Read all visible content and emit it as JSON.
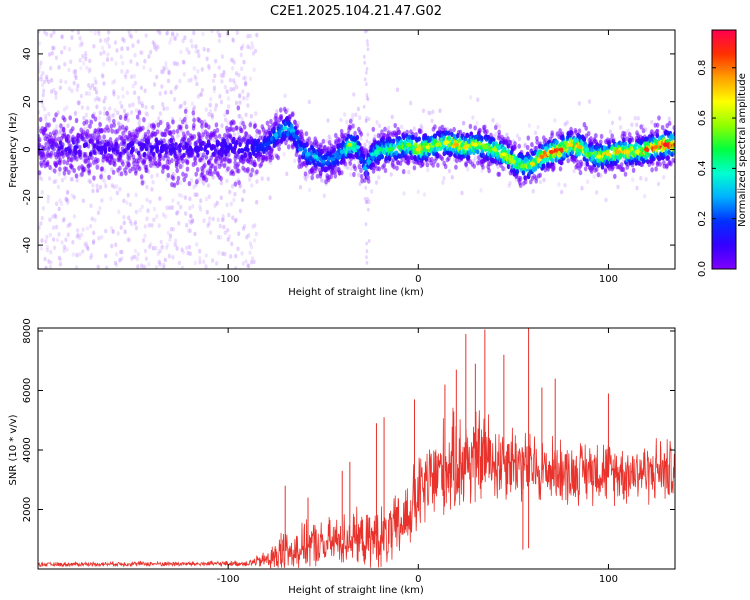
{
  "figure": {
    "title": "C2E1.2025.104.21.47.G02"
  },
  "colors": {
    "snr_line": "#e8322b",
    "background": "#ffffff",
    "frame": "#000000"
  },
  "chart_data": [
    {
      "type": "heatmap",
      "name": "spectrogram",
      "xlabel": "Height of straight line (km)",
      "ylabel": "Frequency (Hz)",
      "xlim": [
        -200,
        135
      ],
      "ylim": [
        -50,
        50
      ],
      "x_ticks": [
        -100,
        0,
        100
      ],
      "x_tick_labels": [
        "-100",
        "0",
        "100"
      ],
      "y_ticks": [
        -40,
        -20,
        0,
        20,
        40
      ],
      "y_tick_labels": [
        "-40",
        "-20",
        "0",
        "20",
        "40"
      ],
      "grid": false,
      "colorbar": {
        "label": "Normalized spectral amplitude",
        "range": [
          0,
          0.95
        ],
        "ticks": [
          0.0,
          0.2,
          0.4,
          0.6,
          0.8
        ],
        "tick_labels": [
          "0.0",
          "0.2",
          "0.4",
          "0.6",
          "0.8"
        ],
        "colormap": [
          "#8000ff",
          "#3300ff",
          "#0030ff",
          "#00b0ff",
          "#00ffd0",
          "#00ff40",
          "#90ff00",
          "#ffff00",
          "#ffa000",
          "#ff3000",
          "#ff0050"
        ]
      },
      "ridge": {
        "x": [
          -200,
          -180,
          -160,
          -140,
          -120,
          -100,
          -90,
          -80,
          -75,
          -70,
          -66,
          -62,
          -58,
          -54,
          -50,
          -45,
          -40,
          -36,
          -32,
          -30,
          -28,
          -26,
          -24,
          -22,
          -20,
          -15,
          -10,
          -5,
          0,
          5,
          10,
          15,
          20,
          25,
          30,
          35,
          40,
          45,
          50,
          55,
          60,
          65,
          70,
          75,
          80,
          85,
          90,
          95,
          100,
          105,
          110,
          115,
          120,
          125,
          130,
          135
        ],
        "freq": [
          0,
          1,
          0,
          1,
          0,
          1,
          0,
          2,
          6,
          9,
          8,
          0,
          -2,
          -3,
          -5,
          -4,
          -1,
          2,
          1,
          -4,
          -8,
          -5,
          -2,
          -1,
          0,
          0,
          1,
          2,
          0,
          1,
          2,
          3,
          2,
          1,
          2,
          1,
          0,
          -2,
          -5,
          -7,
          -6,
          -3,
          -1,
          0,
          2,
          1,
          -2,
          -3,
          -2,
          -1,
          -1,
          -1,
          0,
          1,
          2,
          2
        ],
        "max_amplitude": [
          0.05,
          0.08,
          0.07,
          0.09,
          0.08,
          0.1,
          0.1,
          0.2,
          0.3,
          0.35,
          0.3,
          0.25,
          0.3,
          0.35,
          0.25,
          0.25,
          0.3,
          0.6,
          0.35,
          0.2,
          0.3,
          0.3,
          0.35,
          0.4,
          0.45,
          0.5,
          0.5,
          0.55,
          0.7,
          0.65,
          0.6,
          0.65,
          0.75,
          0.7,
          0.65,
          0.55,
          0.6,
          0.65,
          0.6,
          0.55,
          0.7,
          0.8,
          0.85,
          0.85,
          0.7,
          0.75,
          0.5,
          0.65,
          0.7,
          0.75,
          0.7,
          0.65,
          0.85,
          0.8,
          0.9,
          0.85
        ]
      }
    },
    {
      "type": "line",
      "name": "snr",
      "xlabel": "Height of straight line (km)",
      "ylabel": "SNR (10 * v/v)",
      "xlim": [
        -200,
        135
      ],
      "ylim": [
        0,
        8100
      ],
      "x_ticks": [
        -100,
        0,
        100
      ],
      "x_tick_labels": [
        "-100",
        "0",
        "100"
      ],
      "y_ticks": [
        2000,
        4000,
        6000,
        8000
      ],
      "y_tick_labels": [
        "2000",
        "4000",
        "6000",
        "8000"
      ],
      "grid": false,
      "envelope": {
        "x": [
          -200,
          -180,
          -160,
          -140,
          -120,
          -100,
          -90,
          -82,
          -78,
          -74,
          -70,
          -66,
          -62,
          -58,
          -54,
          -50,
          -46,
          -42,
          -38,
          -34,
          -30,
          -26,
          -22,
          -18,
          -14,
          -10,
          -6,
          -2,
          2,
          6,
          10,
          14,
          18,
          22,
          26,
          30,
          34,
          38,
          42,
          46,
          50,
          54,
          58,
          62,
          66,
          70,
          74,
          78,
          82,
          86,
          90,
          94,
          98,
          102,
          106,
          110,
          114,
          118,
          122,
          126,
          130,
          135
        ],
        "baseline": [
          150,
          160,
          170,
          175,
          170,
          180,
          190,
          280,
          350,
          450,
          600,
          700,
          750,
          800,
          850,
          750,
          900,
          950,
          1000,
          1100,
          1000,
          900,
          1100,
          1000,
          1200,
          1400,
          1800,
          2200,
          2600,
          2900,
          3200,
          3400,
          3500,
          3600,
          3700,
          3700,
          3800,
          3700,
          3600,
          3700,
          3700,
          3500,
          3400,
          3400,
          3300,
          3300,
          3400,
          3200,
          3200,
          3300,
          3300,
          3400,
          3300,
          3200,
          3300,
          3200,
          3300,
          3300,
          3200,
          3400,
          3300,
          3300
        ],
        "spread": [
          80,
          90,
          90,
          100,
          100,
          110,
          120,
          300,
          500,
          700,
          900,
          900,
          850,
          900,
          950,
          950,
          1000,
          1000,
          1100,
          1100,
          1000,
          1100,
          1200,
          1300,
          1300,
          1400,
          1500,
          1600,
          1700,
          1800,
          1900,
          2000,
          2000,
          2000,
          2100,
          2000,
          1900,
          1800,
          1700,
          1600,
          1500,
          1500,
          1400,
          1400,
          1300,
          1300,
          1300,
          1300,
          1200,
          1200,
          1300,
          1300,
          1300,
          1200,
          1200,
          1200,
          1200,
          1200,
          1200,
          1300,
          1300,
          1200
        ]
      },
      "spikes": [
        {
          "x": -70,
          "y": 2800
        },
        {
          "x": -58,
          "y": 2400
        },
        {
          "x": -40,
          "y": 3300
        },
        {
          "x": -36,
          "y": 3600
        },
        {
          "x": -22,
          "y": 4900
        },
        {
          "x": -18,
          "y": 5100
        },
        {
          "x": -2,
          "y": 5700
        },
        {
          "x": 14,
          "y": 6200
        },
        {
          "x": 20,
          "y": 6700
        },
        {
          "x": 25,
          "y": 7900
        },
        {
          "x": 30,
          "y": 6900
        },
        {
          "x": 35,
          "y": 8050
        },
        {
          "x": 45,
          "y": 7200
        },
        {
          "x": 58,
          "y": 8100
        },
        {
          "x": 65,
          "y": 6100
        },
        {
          "x": 72,
          "y": 6400
        },
        {
          "x": 100,
          "y": 5900
        },
        {
          "x": 55,
          "y": 650
        },
        {
          "x": 58,
          "y": 700
        }
      ]
    }
  ]
}
